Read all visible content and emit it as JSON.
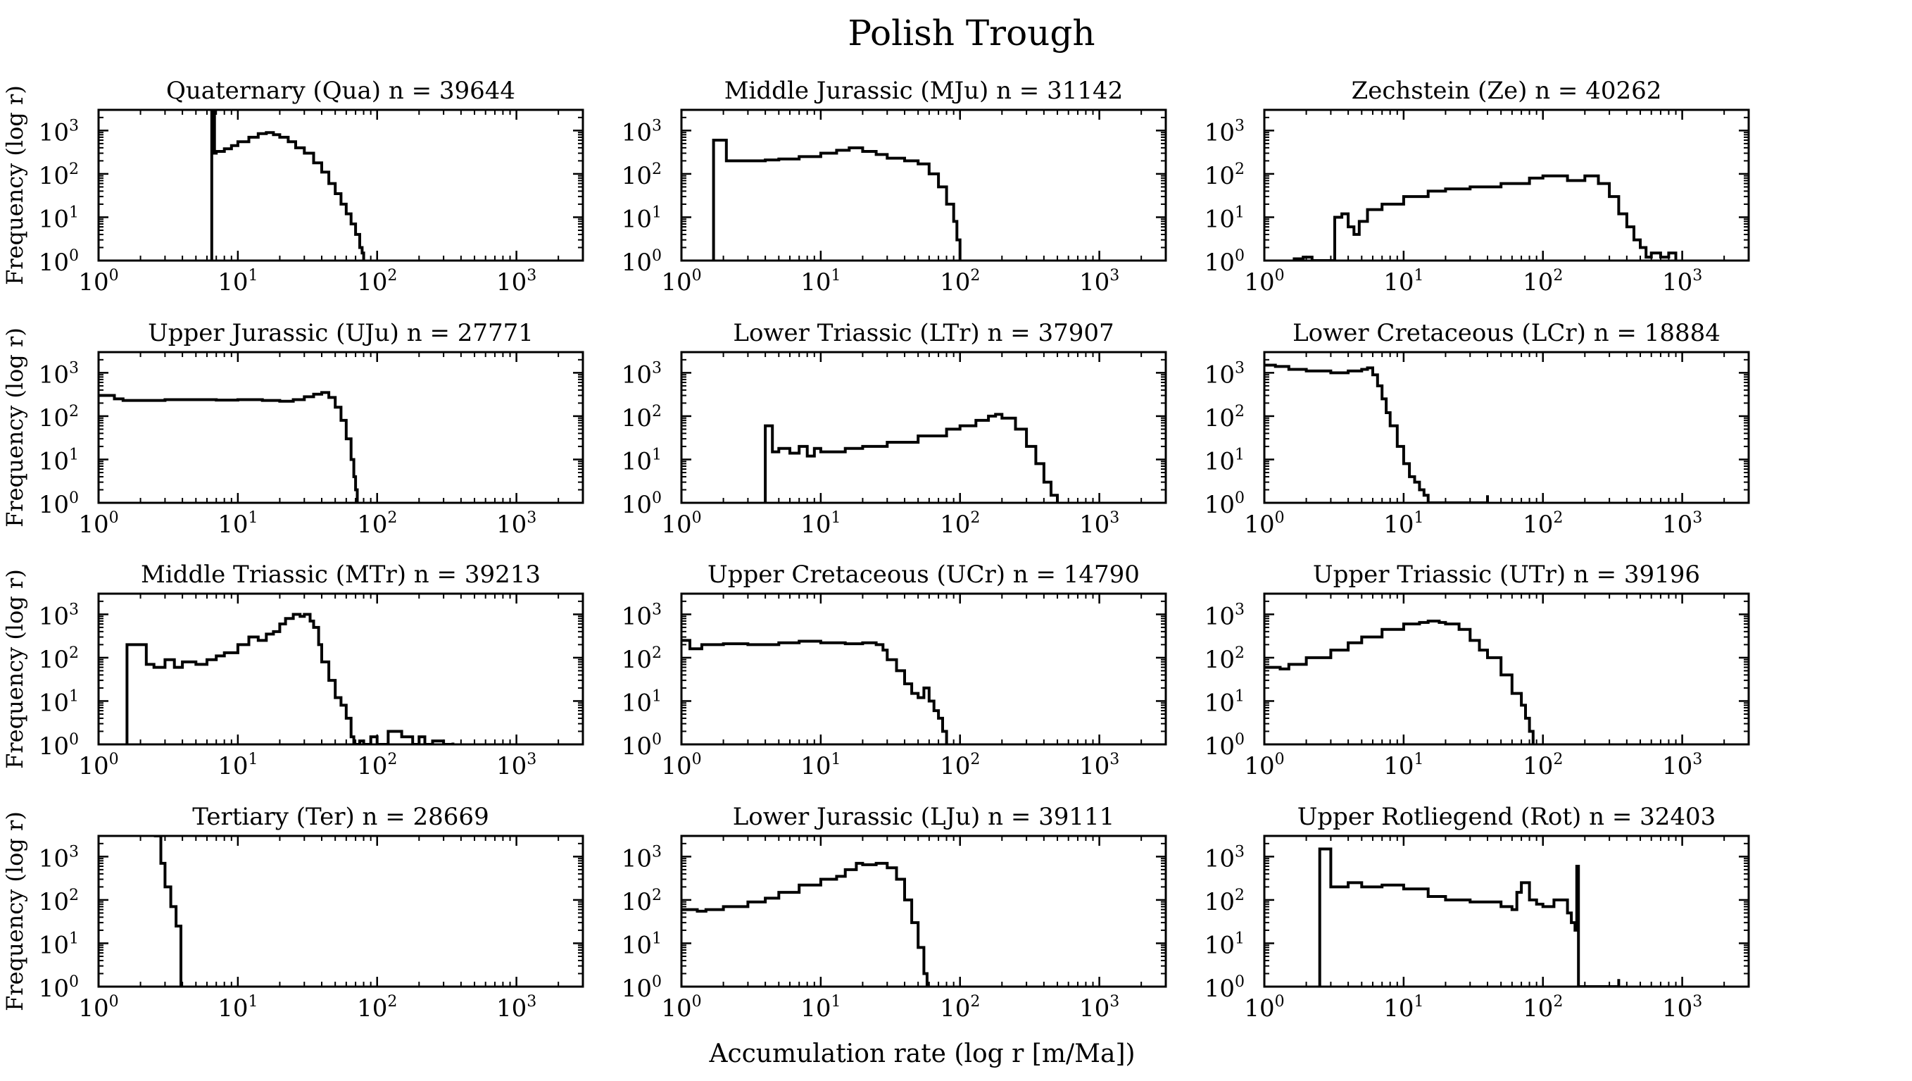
{
  "figure": {
    "title": "Polish Trough",
    "xlabel": "Accumulation rate (log r [m/Ma])",
    "ylabel": "Frequency (log r)"
  },
  "axes": {
    "x_scale": "log",
    "y_scale": "log",
    "xlim": [
      1,
      3000
    ],
    "ylim": [
      1,
      3000
    ],
    "x_ticks": [
      1,
      10,
      100,
      1000
    ],
    "x_tick_labels": [
      {
        "base": "10",
        "exp": "0"
      },
      {
        "base": "10",
        "exp": "1"
      },
      {
        "base": "10",
        "exp": "2"
      },
      {
        "base": "10",
        "exp": "3"
      }
    ],
    "y_ticks": [
      1,
      10,
      100,
      1000
    ],
    "y_tick_labels": [
      {
        "base": "10",
        "exp": "0"
      },
      {
        "base": "10",
        "exp": "1"
      },
      {
        "base": "10",
        "exp": "2"
      },
      {
        "base": "10",
        "exp": "3"
      }
    ],
    "line_color": "#000000",
    "grid": false,
    "legend": "none"
  },
  "chart_data": [
    {
      "type": "line",
      "step": true,
      "title": "Quaternary (Qua) n = 39644",
      "series": [
        {
          "x": [
            6.5,
            6.5,
            6.8,
            7,
            8,
            9,
            10,
            12,
            14,
            16,
            18,
            20,
            23,
            26,
            30,
            35,
            40,
            45,
            50,
            55,
            60,
            65,
            70,
            75,
            78,
            80,
            80
          ],
          "y": [
            1,
            3000,
            300,
            330,
            380,
            450,
            550,
            700,
            850,
            900,
            800,
            700,
            550,
            400,
            300,
            180,
            110,
            60,
            35,
            20,
            12,
            7,
            4,
            2,
            1.5,
            1.2,
            1
          ]
        }
      ]
    },
    {
      "type": "line",
      "step": true,
      "title": "Upper Jurassic (UJu) n = 27771",
      "series": [
        {
          "x": [
            1,
            1.3,
            1.5,
            2,
            3,
            5,
            7,
            10,
            15,
            20,
            25,
            30,
            35,
            40,
            45,
            50,
            55,
            60,
            65,
            68,
            70,
            72,
            72
          ],
          "y": [
            300,
            250,
            230,
            230,
            240,
            240,
            235,
            240,
            230,
            220,
            240,
            280,
            320,
            350,
            270,
            160,
            80,
            30,
            10,
            4,
            2,
            1.2,
            1
          ]
        }
      ]
    },
    {
      "type": "line",
      "step": true,
      "title": "Middle Triassic (MTr) n = 39213",
      "series": [
        {
          "x": [
            1.6,
            1.6,
            2.0,
            2.2,
            2.5,
            3,
            3.5,
            4,
            5,
            6,
            7,
            8,
            10,
            12,
            14,
            16,
            18,
            20,
            22,
            25,
            28,
            30,
            33,
            35,
            38,
            40,
            45,
            50,
            55,
            60,
            65,
            68,
            68,
            75,
            80,
            90,
            100,
            120,
            150,
            180,
            200,
            220,
            250,
            300,
            350,
            350
          ],
          "y": [
            1,
            200,
            200,
            70,
            60,
            90,
            60,
            80,
            70,
            90,
            110,
            130,
            200,
            300,
            250,
            350,
            400,
            600,
            800,
            1000,
            900,
            1000,
            700,
            500,
            200,
            80,
            30,
            12,
            8,
            4,
            1.5,
            1,
            1,
            1.2,
            1,
            1.5,
            1,
            2,
            1.5,
            1,
            1.5,
            1,
            1.2,
            1,
            1.1,
            1
          ]
        }
      ]
    },
    {
      "type": "line",
      "step": true,
      "title": "Tertiary (Ter) n = 28669",
      "series": [
        {
          "x": [
            2.5,
            2.8,
            3.0,
            3.3,
            3.6,
            3.9,
            3.9
          ],
          "y": [
            3000,
            700,
            200,
            70,
            25,
            1,
            1
          ]
        }
      ]
    },
    {
      "type": "line",
      "step": true,
      "title": "Middle Jurassic (MJu) n = 31142",
      "series": [
        {
          "x": [
            1.7,
            1.7,
            2.1,
            2.1,
            3,
            4,
            5,
            7,
            10,
            13,
            16,
            20,
            25,
            30,
            40,
            50,
            60,
            70,
            80,
            90,
            95,
            100,
            100
          ],
          "y": [
            1,
            600,
            600,
            200,
            200,
            210,
            220,
            250,
            300,
            350,
            400,
            330,
            280,
            230,
            200,
            170,
            100,
            50,
            20,
            8,
            3,
            1.2,
            1
          ]
        }
      ]
    },
    {
      "type": "line",
      "step": true,
      "title": "Lower Triassic (LTr) n = 37907",
      "series": [
        {
          "x": [
            4,
            4,
            4.5,
            5,
            6,
            7,
            8,
            9,
            10,
            15,
            20,
            30,
            50,
            80,
            100,
            130,
            160,
            180,
            200,
            250,
            300,
            350,
            400,
            450,
            500,
            500
          ],
          "y": [
            1,
            60,
            15,
            18,
            14,
            20,
            12,
            18,
            15,
            18,
            20,
            25,
            35,
            50,
            60,
            80,
            100,
            110,
            90,
            50,
            20,
            8,
            3,
            1.5,
            1.2,
            1
          ]
        }
      ]
    },
    {
      "type": "line",
      "step": true,
      "title": "Upper Cretaceous (UCr) n = 14790",
      "series": [
        {
          "x": [
            1,
            1.15,
            1.4,
            2,
            3,
            5,
            7,
            10,
            15,
            20,
            25,
            28,
            30,
            35,
            40,
            45,
            50,
            55,
            60,
            65,
            70,
            75,
            80,
            80
          ],
          "y": [
            250,
            160,
            200,
            210,
            200,
            220,
            240,
            220,
            210,
            220,
            200,
            150,
            90,
            50,
            25,
            15,
            12,
            20,
            10,
            6,
            4,
            2,
            1.2,
            1
          ]
        }
      ]
    },
    {
      "type": "line",
      "step": true,
      "title": "Lower Jurassic (LJu) n = 39111",
      "series": [
        {
          "x": [
            1,
            1.3,
            1.5,
            2,
            3,
            4,
            5,
            7,
            10,
            13,
            15,
            18,
            20,
            25,
            30,
            35,
            40,
            45,
            50,
            55,
            58,
            58
          ],
          "y": [
            60,
            55,
            60,
            70,
            90,
            110,
            150,
            220,
            300,
            350,
            500,
            700,
            650,
            700,
            550,
            300,
            100,
            30,
            8,
            2,
            1.2,
            1
          ]
        }
      ]
    },
    {
      "type": "line",
      "step": true,
      "title": "Zechstein (Ze) n = 40262",
      "series": [
        {
          "x": [
            1.6,
            1.9,
            2.2,
            3.2,
            3.2,
            3.6,
            4.0,
            4.4,
            4.8,
            5.5,
            7,
            10,
            15,
            20,
            30,
            50,
            80,
            100,
            150,
            200,
            250,
            300,
            350,
            400,
            450,
            500,
            550,
            600,
            700,
            800,
            900,
            900
          ],
          "y": [
            1.1,
            1.2,
            1,
            1,
            10,
            12,
            6,
            4,
            8,
            15,
            20,
            30,
            40,
            45,
            50,
            60,
            80,
            90,
            70,
            90,
            60,
            30,
            12,
            6,
            3,
            2,
            1.2,
            1.5,
            1.2,
            1.5,
            1.3,
            1
          ]
        }
      ]
    },
    {
      "type": "line",
      "step": true,
      "title": "Lower Cretaceous (LCr) n = 18884",
      "series": [
        {
          "x": [
            1,
            1.2,
            1.5,
            2,
            3,
            4,
            5,
            5.5,
            6,
            6.5,
            7,
            7.5,
            8,
            9,
            10,
            11,
            12,
            13,
            14,
            15,
            15,
            40,
            40
          ],
          "y": [
            1500,
            1400,
            1200,
            1100,
            1000,
            1100,
            1200,
            1300,
            900,
            500,
            250,
            120,
            60,
            20,
            8,
            4,
            3,
            2,
            1.5,
            1.2,
            1,
            1.5,
            1
          ]
        }
      ]
    },
    {
      "type": "line",
      "step": true,
      "title": "Upper Triassic (UTr) n = 39196",
      "series": [
        {
          "x": [
            1,
            1.3,
            1.5,
            2,
            3,
            4,
            5,
            7,
            10,
            13,
            15,
            18,
            20,
            25,
            30,
            35,
            40,
            50,
            60,
            70,
            75,
            80,
            85,
            85
          ],
          "y": [
            60,
            55,
            70,
            100,
            150,
            220,
            300,
            450,
            600,
            650,
            700,
            650,
            600,
            450,
            250,
            150,
            100,
            40,
            15,
            8,
            4,
            2,
            1.2,
            1
          ]
        }
      ]
    },
    {
      "type": "line",
      "step": true,
      "title": "Upper Rotliegend (Rot) n = 32403",
      "series": [
        {
          "x": [
            2.5,
            2.5,
            3.0,
            3.0,
            4,
            5,
            7,
            10,
            15,
            20,
            30,
            50,
            60,
            65,
            70,
            80,
            90,
            100,
            120,
            150,
            160,
            170,
            175,
            180,
            180,
            350,
            350
          ],
          "y": [
            1,
            1500,
            1500,
            200,
            250,
            200,
            220,
            180,
            120,
            100,
            90,
            70,
            60,
            150,
            250,
            100,
            80,
            70,
            100,
            50,
            30,
            20,
            600,
            1.2,
            1,
            1.5,
            1
          ]
        }
      ]
    }
  ]
}
